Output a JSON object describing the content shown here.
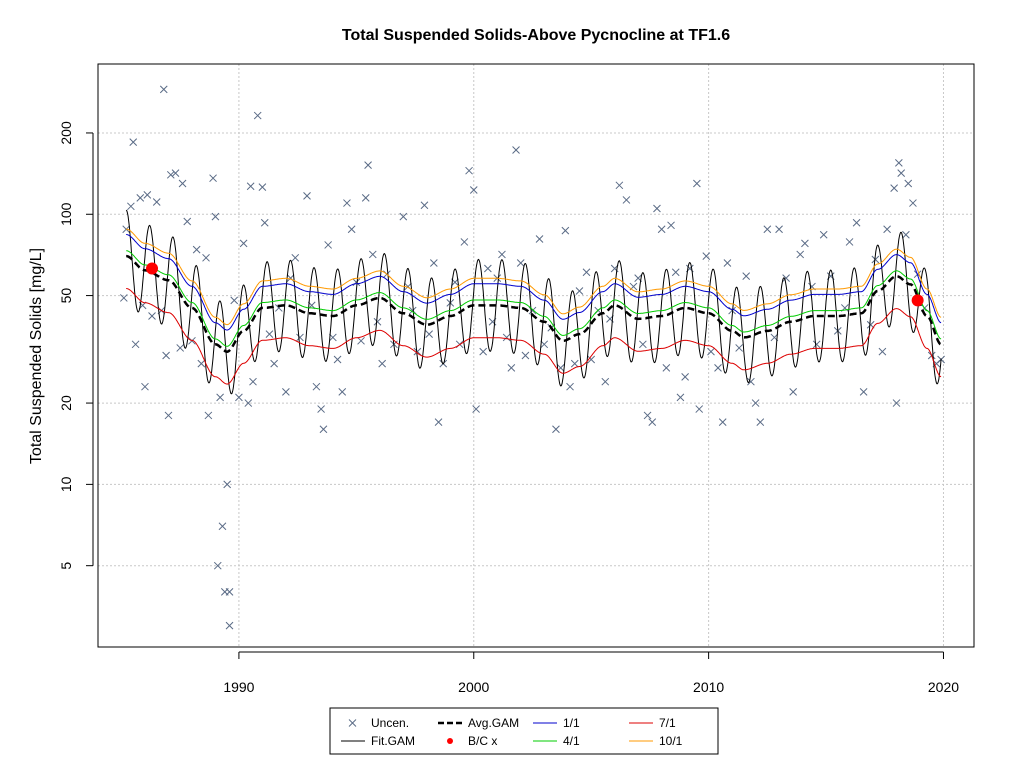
{
  "chart_data": {
    "type": "scatter",
    "title": "Total Suspended Solids-Above Pycnocline at TF1.6",
    "ylabel": "Total Suspended Solids [mg/L]",
    "xlabel": "",
    "y_scale": "log",
    "xlim": [
      1984.0,
      2021.3
    ],
    "ylim": [
      2.5,
      360
    ],
    "x_ticks": [
      1990,
      2000,
      2010,
      2020
    ],
    "x_tick_labels": [
      "1990",
      "2000",
      "2010",
      "2020"
    ],
    "y_ticks": [
      5,
      10,
      20,
      50,
      100,
      200
    ],
    "y_tick_labels": [
      "5",
      "10",
      "20",
      "50",
      "100",
      "200"
    ],
    "grid": true,
    "legend": {
      "position": "bottom-center",
      "entries": [
        {
          "label": "Uncen.",
          "kind": "x-marker",
          "color": "#5a6b86"
        },
        {
          "label": "Fit.GAM",
          "kind": "line",
          "color": "#000000"
        },
        {
          "label": "Avg.GAM",
          "kind": "dashed-line",
          "color": "#000000"
        },
        {
          "label": "B/C x",
          "kind": "dot",
          "color": "#ff0000"
        },
        {
          "label": "1/1",
          "kind": "line",
          "color": "#0000cc"
        },
        {
          "label": "4/1",
          "kind": "line",
          "color": "#00cc00"
        },
        {
          "label": "7/1",
          "kind": "line",
          "color": "#dd0000"
        },
        {
          "label": "10/1",
          "kind": "line",
          "color": "#ff9900"
        }
      ]
    },
    "avg_gam": {
      "x": [
        1985.2,
        1986.0,
        1987.0,
        1988.0,
        1989.0,
        1989.5,
        1990.2,
        1991.0,
        1992.0,
        1993.0,
        1994.0,
        1995.0,
        1996.0,
        1997.0,
        1998.0,
        1999.0,
        2000.0,
        2001.0,
        2002.0,
        2003.0,
        2003.8,
        2004.5,
        2005.5,
        2006.0,
        2007.0,
        2008.0,
        2009.0,
        2010.0,
        2011.0,
        2011.5,
        2012.5,
        2013.5,
        2014.5,
        2015.5,
        2016.5,
        2017.2,
        2018.0,
        2018.6,
        2019.3,
        2019.9
      ],
      "y": [
        70,
        62,
        57,
        45,
        33,
        31,
        37,
        45,
        46,
        43,
        42,
        46,
        49,
        43,
        39,
        42,
        46,
        46,
        45,
        40,
        34,
        36,
        43,
        46,
        41,
        42,
        45,
        43,
        37,
        35,
        37,
        40,
        42,
        42,
        43,
        52,
        59,
        55,
        42,
        33
      ],
      "seasonal_amplitude": 0.17,
      "spring_peak_month_fraction": 0.2
    },
    "season_offsets": {
      "1/1": 0.08,
      "4/1": 0.02,
      "7/1": -0.12,
      "10/1": 0.1
    },
    "bc_points": {
      "x": [
        1986.3,
        2018.9
      ],
      "y": [
        63,
        48
      ]
    },
    "observations": [
      {
        "x": 1985.1,
        "y": 49
      },
      {
        "x": 1985.2,
        "y": 88
      },
      {
        "x": 1985.4,
        "y": 107
      },
      {
        "x": 1985.5,
        "y": 185
      },
      {
        "x": 1985.6,
        "y": 33
      },
      {
        "x": 1985.8,
        "y": 115
      },
      {
        "x": 1985.9,
        "y": 46
      },
      {
        "x": 1986.0,
        "y": 23
      },
      {
        "x": 1986.1,
        "y": 118
      },
      {
        "x": 1986.3,
        "y": 42
      },
      {
        "x": 1986.5,
        "y": 111
      },
      {
        "x": 1986.7,
        "y": 44
      },
      {
        "x": 1986.8,
        "y": 290
      },
      {
        "x": 1986.9,
        "y": 30
      },
      {
        "x": 1987.0,
        "y": 18
      },
      {
        "x": 1987.1,
        "y": 140
      },
      {
        "x": 1987.3,
        "y": 142
      },
      {
        "x": 1987.5,
        "y": 32
      },
      {
        "x": 1987.6,
        "y": 130
      },
      {
        "x": 1987.8,
        "y": 94
      },
      {
        "x": 1988.0,
        "y": 34
      },
      {
        "x": 1988.2,
        "y": 74
      },
      {
        "x": 1988.4,
        "y": 28
      },
      {
        "x": 1988.6,
        "y": 69
      },
      {
        "x": 1988.7,
        "y": 18
      },
      {
        "x": 1988.9,
        "y": 136
      },
      {
        "x": 1989.0,
        "y": 98
      },
      {
        "x": 1989.1,
        "y": 5
      },
      {
        "x": 1989.2,
        "y": 21
      },
      {
        "x": 1989.3,
        "y": 7
      },
      {
        "x": 1989.4,
        "y": 4
      },
      {
        "x": 1989.5,
        "y": 10
      },
      {
        "x": 1989.6,
        "y": 3
      },
      {
        "x": 1989.6,
        "y": 4
      },
      {
        "x": 1989.8,
        "y": 48
      },
      {
        "x": 1990.0,
        "y": 21
      },
      {
        "x": 1990.2,
        "y": 78
      },
      {
        "x": 1990.4,
        "y": 20
      },
      {
        "x": 1990.5,
        "y": 127
      },
      {
        "x": 1990.6,
        "y": 24
      },
      {
        "x": 1990.8,
        "y": 232
      },
      {
        "x": 1991.0,
        "y": 126
      },
      {
        "x": 1991.1,
        "y": 93
      },
      {
        "x": 1991.3,
        "y": 36
      },
      {
        "x": 1991.5,
        "y": 28
      },
      {
        "x": 1991.7,
        "y": 45
      },
      {
        "x": 1992.0,
        "y": 22
      },
      {
        "x": 1992.2,
        "y": 58
      },
      {
        "x": 1992.4,
        "y": 69
      },
      {
        "x": 1992.6,
        "y": 35
      },
      {
        "x": 1992.9,
        "y": 117
      },
      {
        "x": 1993.1,
        "y": 46
      },
      {
        "x": 1993.3,
        "y": 23
      },
      {
        "x": 1993.5,
        "y": 19
      },
      {
        "x": 1993.6,
        "y": 16
      },
      {
        "x": 1993.8,
        "y": 77
      },
      {
        "x": 1994.0,
        "y": 35
      },
      {
        "x": 1994.2,
        "y": 29
      },
      {
        "x": 1994.4,
        "y": 22
      },
      {
        "x": 1994.6,
        "y": 110
      },
      {
        "x": 1994.8,
        "y": 88
      },
      {
        "x": 1995.0,
        "y": 56
      },
      {
        "x": 1995.2,
        "y": 34
      },
      {
        "x": 1995.4,
        "y": 115
      },
      {
        "x": 1995.5,
        "y": 152
      },
      {
        "x": 1995.7,
        "y": 71
      },
      {
        "x": 1995.9,
        "y": 40
      },
      {
        "x": 1996.1,
        "y": 28
      },
      {
        "x": 1996.3,
        "y": 60
      },
      {
        "x": 1996.6,
        "y": 33
      },
      {
        "x": 1997.0,
        "y": 98
      },
      {
        "x": 1997.2,
        "y": 54
      },
      {
        "x": 1997.4,
        "y": 44
      },
      {
        "x": 1997.6,
        "y": 31
      },
      {
        "x": 1997.9,
        "y": 108
      },
      {
        "x": 1998.1,
        "y": 36
      },
      {
        "x": 1998.3,
        "y": 66
      },
      {
        "x": 1998.5,
        "y": 17
      },
      {
        "x": 1998.7,
        "y": 28
      },
      {
        "x": 1999.0,
        "y": 47
      },
      {
        "x": 1999.2,
        "y": 56
      },
      {
        "x": 1999.4,
        "y": 33
      },
      {
        "x": 1999.6,
        "y": 79
      },
      {
        "x": 1999.8,
        "y": 145
      },
      {
        "x": 2000.0,
        "y": 123
      },
      {
        "x": 2000.1,
        "y": 19
      },
      {
        "x": 2000.4,
        "y": 31
      },
      {
        "x": 2000.6,
        "y": 63
      },
      {
        "x": 2000.8,
        "y": 40
      },
      {
        "x": 2001.0,
        "y": 58
      },
      {
        "x": 2001.2,
        "y": 71
      },
      {
        "x": 2001.4,
        "y": 35
      },
      {
        "x": 2001.6,
        "y": 27
      },
      {
        "x": 2001.8,
        "y": 173
      },
      {
        "x": 2002.0,
        "y": 66
      },
      {
        "x": 2002.2,
        "y": 30
      },
      {
        "x": 2002.5,
        "y": 44
      },
      {
        "x": 2002.8,
        "y": 81
      },
      {
        "x": 2003.0,
        "y": 33
      },
      {
        "x": 2003.3,
        "y": 38
      },
      {
        "x": 2003.5,
        "y": 16
      },
      {
        "x": 2003.7,
        "y": 27
      },
      {
        "x": 2003.9,
        "y": 87
      },
      {
        "x": 2004.1,
        "y": 23
      },
      {
        "x": 2004.3,
        "y": 28
      },
      {
        "x": 2004.5,
        "y": 52
      },
      {
        "x": 2004.8,
        "y": 61
      },
      {
        "x": 2005.0,
        "y": 29
      },
      {
        "x": 2005.3,
        "y": 44
      },
      {
        "x": 2005.6,
        "y": 24
      },
      {
        "x": 2005.8,
        "y": 41
      },
      {
        "x": 2006.0,
        "y": 63
      },
      {
        "x": 2006.2,
        "y": 128
      },
      {
        "x": 2006.5,
        "y": 113
      },
      {
        "x": 2006.8,
        "y": 54
      },
      {
        "x": 2007.0,
        "y": 58
      },
      {
        "x": 2007.2,
        "y": 33
      },
      {
        "x": 2007.4,
        "y": 18
      },
      {
        "x": 2007.6,
        "y": 17
      },
      {
        "x": 2007.8,
        "y": 105
      },
      {
        "x": 2008.0,
        "y": 88
      },
      {
        "x": 2008.2,
        "y": 27
      },
      {
        "x": 2008.4,
        "y": 91
      },
      {
        "x": 2008.6,
        "y": 61
      },
      {
        "x": 2008.8,
        "y": 21
      },
      {
        "x": 2009.0,
        "y": 25
      },
      {
        "x": 2009.2,
        "y": 63
      },
      {
        "x": 2009.5,
        "y": 130
      },
      {
        "x": 2009.6,
        "y": 19
      },
      {
        "x": 2009.9,
        "y": 70
      },
      {
        "x": 2010.1,
        "y": 31
      },
      {
        "x": 2010.4,
        "y": 27
      },
      {
        "x": 2010.6,
        "y": 17
      },
      {
        "x": 2010.8,
        "y": 66
      },
      {
        "x": 2011.0,
        "y": 44
      },
      {
        "x": 2011.3,
        "y": 32
      },
      {
        "x": 2011.6,
        "y": 59
      },
      {
        "x": 2011.8,
        "y": 24
      },
      {
        "x": 2012.0,
        "y": 20
      },
      {
        "x": 2012.2,
        "y": 17
      },
      {
        "x": 2012.5,
        "y": 88
      },
      {
        "x": 2012.8,
        "y": 35
      },
      {
        "x": 2013.0,
        "y": 88
      },
      {
        "x": 2013.3,
        "y": 58
      },
      {
        "x": 2013.6,
        "y": 22
      },
      {
        "x": 2013.9,
        "y": 71
      },
      {
        "x": 2014.1,
        "y": 78
      },
      {
        "x": 2014.4,
        "y": 54
      },
      {
        "x": 2014.6,
        "y": 33
      },
      {
        "x": 2014.9,
        "y": 84
      },
      {
        "x": 2015.2,
        "y": 59
      },
      {
        "x": 2015.5,
        "y": 37
      },
      {
        "x": 2015.8,
        "y": 45
      },
      {
        "x": 2016.0,
        "y": 79
      },
      {
        "x": 2016.3,
        "y": 93
      },
      {
        "x": 2016.6,
        "y": 22
      },
      {
        "x": 2016.9,
        "y": 39
      },
      {
        "x": 2017.1,
        "y": 68
      },
      {
        "x": 2017.4,
        "y": 31
      },
      {
        "x": 2017.6,
        "y": 88
      },
      {
        "x": 2017.9,
        "y": 125
      },
      {
        "x": 2018.0,
        "y": 20
      },
      {
        "x": 2018.1,
        "y": 155
      },
      {
        "x": 2018.2,
        "y": 142
      },
      {
        "x": 2018.4,
        "y": 84
      },
      {
        "x": 2018.5,
        "y": 130
      },
      {
        "x": 2018.7,
        "y": 110
      },
      {
        "x": 2018.9,
        "y": 60
      },
      {
        "x": 2019.2,
        "y": 45
      },
      {
        "x": 2019.5,
        "y": 30
      },
      {
        "x": 2019.7,
        "y": 28
      },
      {
        "x": 2019.9,
        "y": 29
      }
    ]
  }
}
